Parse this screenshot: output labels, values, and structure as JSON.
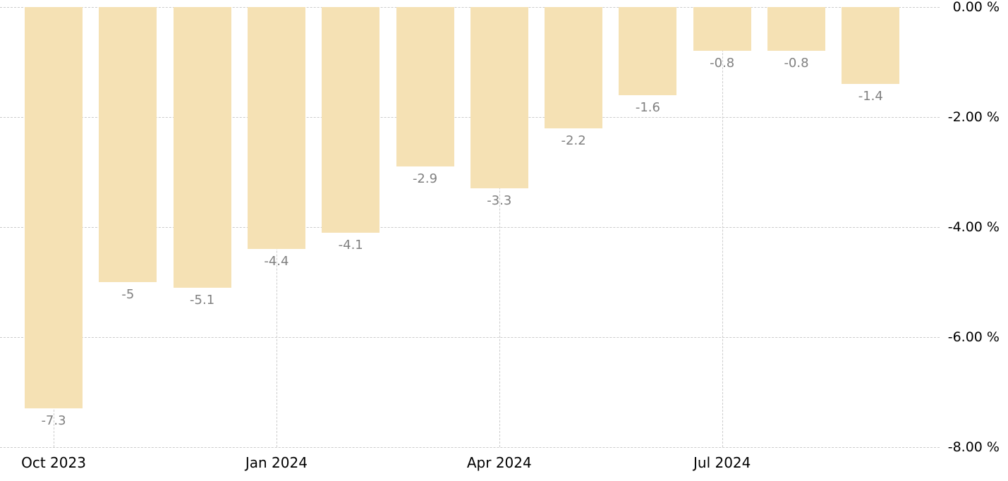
{
  "chart_data": {
    "type": "bar",
    "title": "",
    "values": [
      -7.3,
      -5,
      -5.1,
      -4.4,
      -4.1,
      -2.9,
      -3.3,
      -2.2,
      -1.6,
      -0.8,
      -0.8,
      -1.4
    ],
    "bar_value_labels": [
      "-7.3",
      "-5",
      "-5.1",
      "-4.4",
      "-4.1",
      "-2.9",
      "-3.3",
      "-2.2",
      "-1.6",
      "-0.8",
      "-0.8",
      "-1.4"
    ],
    "x_ticks": [
      {
        "bar_index": 0,
        "label": "Oct 2023"
      },
      {
        "bar_index": 3,
        "label": "Jan 2024"
      },
      {
        "bar_index": 6,
        "label": "Apr 2024"
      },
      {
        "bar_index": 9,
        "label": "Jul 2024"
      }
    ],
    "y_ticks": [
      {
        "value": 0,
        "label": "0.00 %"
      },
      {
        "value": -2,
        "label": "-2.00 %"
      },
      {
        "value": -4,
        "label": "-4.00 %"
      },
      {
        "value": -6,
        "label": "-6.00 %"
      },
      {
        "value": -8,
        "label": "-8.00 %"
      }
    ],
    "ylim": [
      -8,
      0
    ],
    "grid": true,
    "legend": false,
    "colors": {
      "bar": "#f5e1b4",
      "value_label": "#808080",
      "axis_text": "#000000",
      "gridline": "#cccccc",
      "background": "#ffffff"
    }
  }
}
